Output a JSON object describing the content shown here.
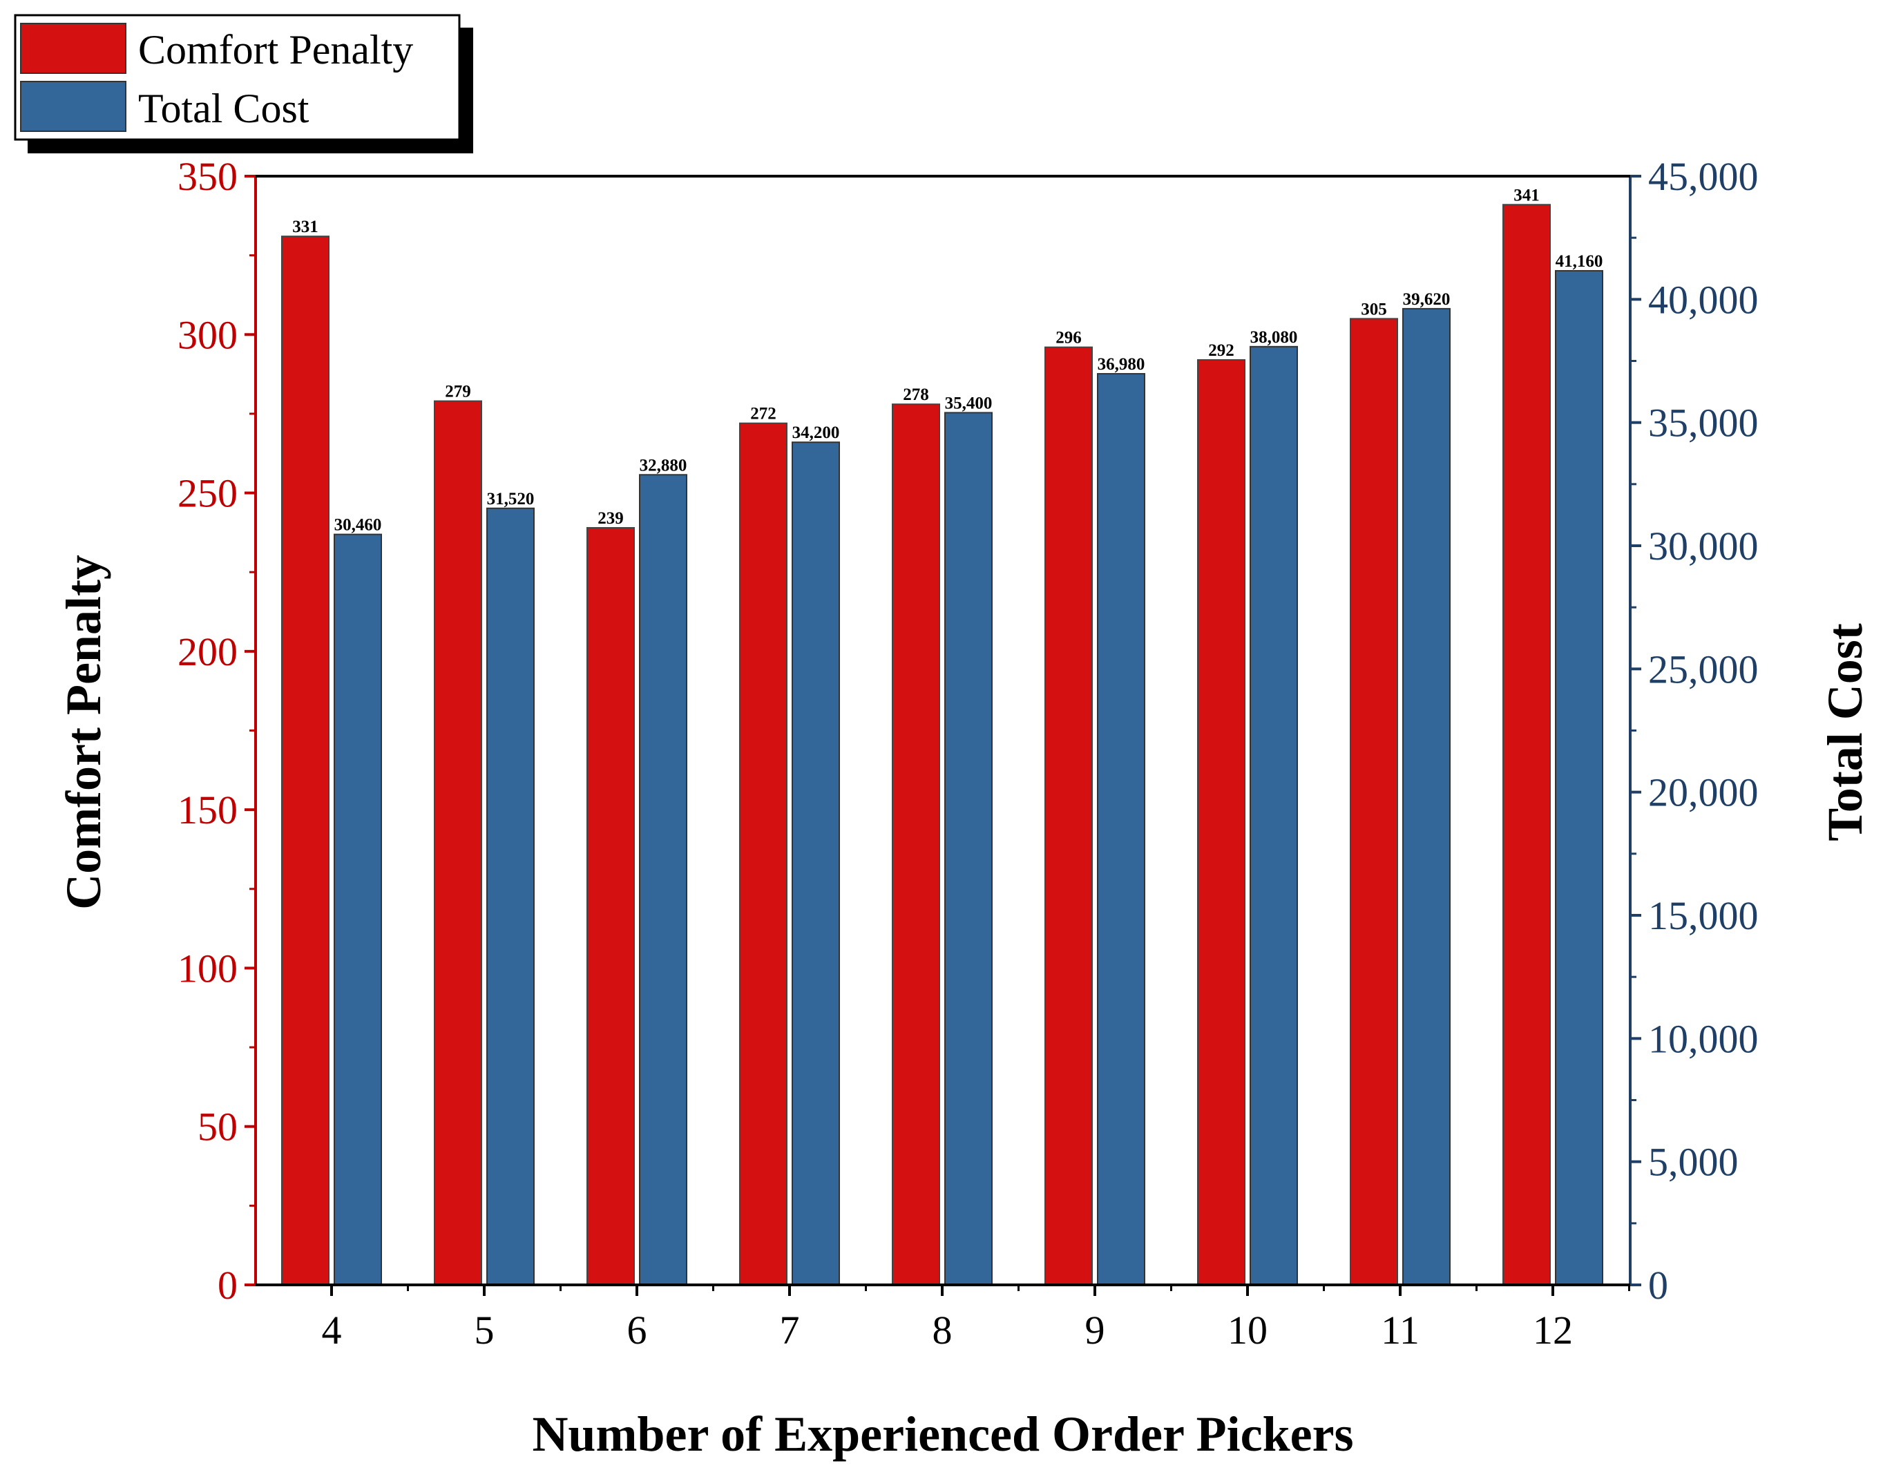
{
  "chart_data": {
    "type": "bar",
    "title": "",
    "xlabel": "Number of Experienced Order Pickers",
    "categories": [
      "4",
      "5",
      "6",
      "7",
      "8",
      "9",
      "10",
      "11",
      "12"
    ],
    "series": [
      {
        "name": "Comfort Penalty",
        "axis": "left",
        "color": "#d41010",
        "values": [
          331,
          279,
          239,
          272,
          278,
          296,
          292,
          305,
          341
        ],
        "labels": [
          "331",
          "279",
          "239",
          "272",
          "278",
          "296",
          "292",
          "305",
          "341"
        ]
      },
      {
        "name": "Total Cost",
        "axis": "right",
        "color": "#336699",
        "values": [
          30460,
          31520,
          32880,
          34200,
          35400,
          36980,
          38080,
          39620,
          41160
        ],
        "labels": [
          "30,460",
          "31,520",
          "32,880",
          "34,200",
          "35,400",
          "36,980",
          "38,080",
          "39,620",
          "41,160"
        ]
      }
    ],
    "y_left": {
      "label": "Comfort Penalty",
      "color": "#c00000",
      "ylim": [
        0,
        350
      ],
      "ticks": [
        0,
        50,
        100,
        150,
        200,
        250,
        300,
        350
      ],
      "tick_labels": [
        "0",
        "50",
        "100",
        "150",
        "200",
        "250",
        "300",
        "350"
      ]
    },
    "y_right": {
      "label": "Total Cost",
      "color": "#1f3f66",
      "ylim": [
        0,
        45000
      ],
      "ticks": [
        0,
        5000,
        10000,
        15000,
        20000,
        25000,
        30000,
        35000,
        40000,
        45000
      ],
      "tick_labels": [
        "0",
        "5,000",
        "10,000",
        "15,000",
        "20,000",
        "25,000",
        "30,000",
        "35,000",
        "40,000",
        "45,000"
      ]
    },
    "legend": {
      "position": "top-left",
      "items": [
        "Comfort Penalty",
        "Total Cost"
      ]
    },
    "grid": false
  }
}
